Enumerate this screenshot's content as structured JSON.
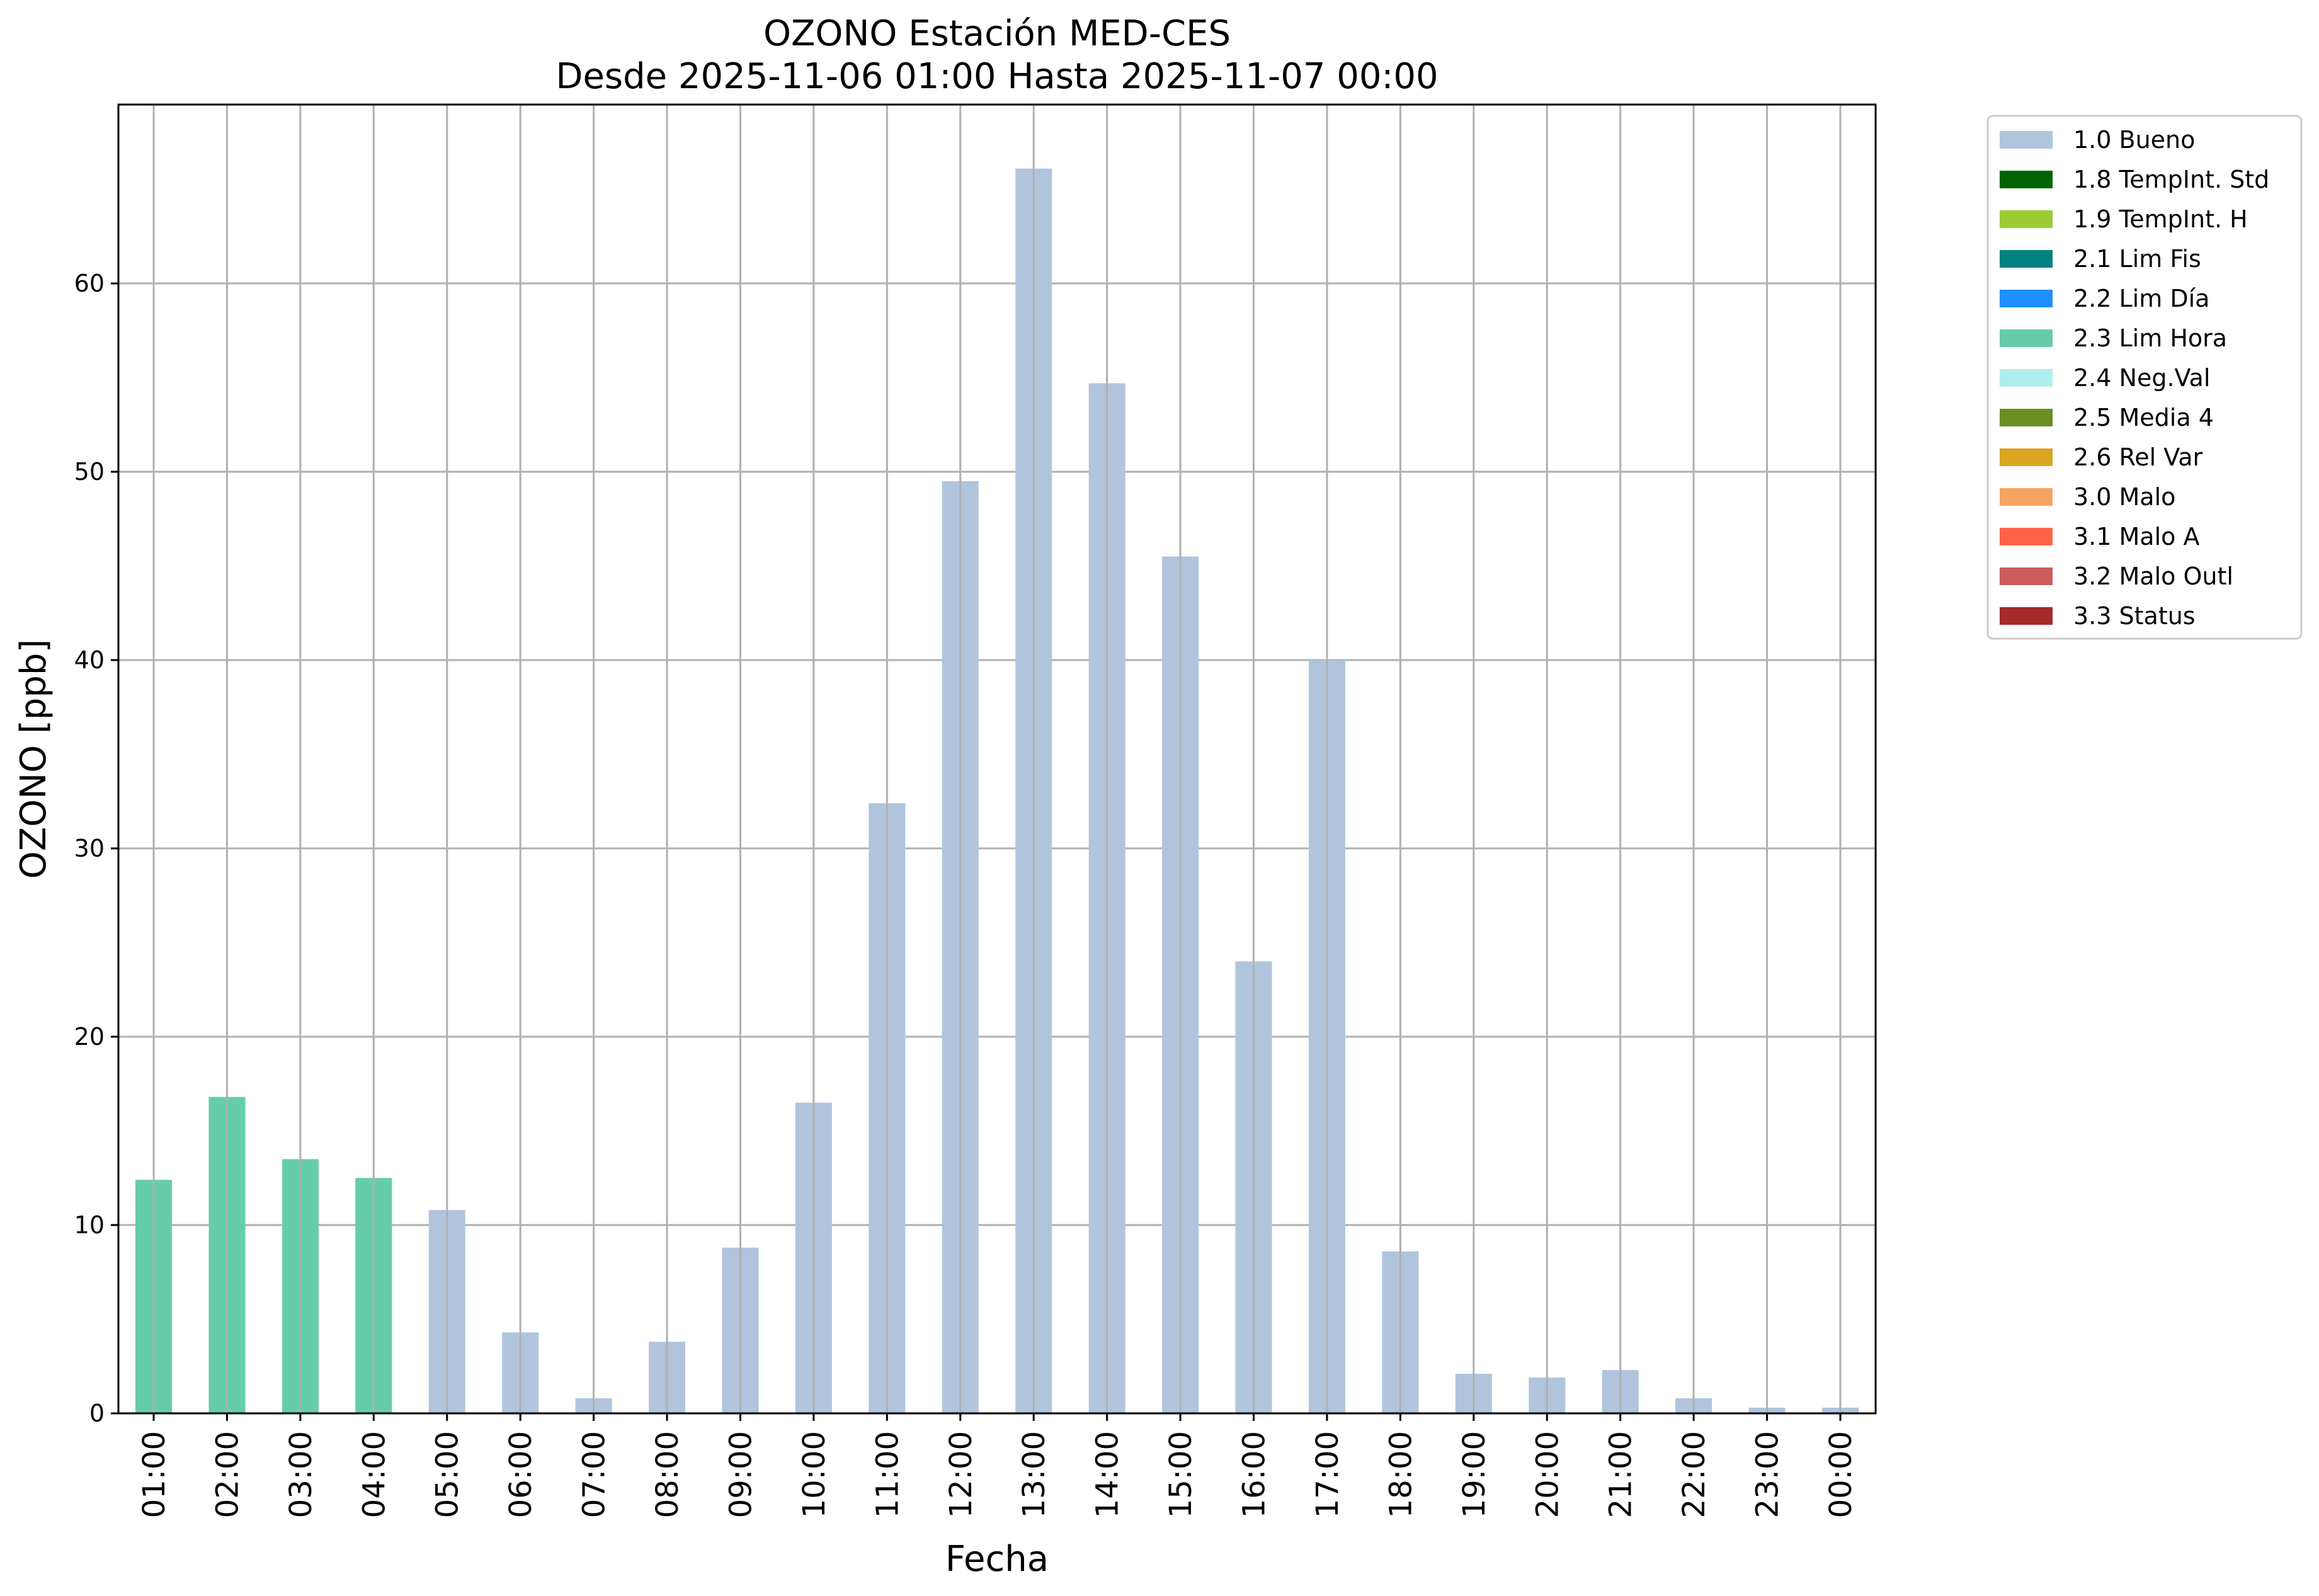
{
  "chart_data": {
    "type": "bar",
    "title": "OZONO Estación MED-CES",
    "subtitle": "Desde 2025-11-06 01:00 Hasta 2025-11-07 00:00",
    "xlabel": "Fecha",
    "ylabel": "OZONO [ppb]",
    "ylim": [
      0,
      69.5
    ],
    "yticks": [
      0,
      10,
      20,
      30,
      40,
      50,
      60
    ],
    "grid": true,
    "legend_position": "outside-top-right",
    "categories": [
      "01:00",
      "02:00",
      "03:00",
      "04:00",
      "05:00",
      "06:00",
      "07:00",
      "08:00",
      "09:00",
      "10:00",
      "11:00",
      "12:00",
      "13:00",
      "14:00",
      "15:00",
      "16:00",
      "17:00",
      "18:00",
      "19:00",
      "20:00",
      "21:00",
      "22:00",
      "23:00",
      "00:00"
    ],
    "values": [
      12.4,
      16.8,
      13.5,
      12.5,
      10.8,
      4.3,
      0.8,
      3.8,
      8.8,
      16.5,
      32.4,
      49.5,
      66.1,
      54.7,
      45.5,
      24.0,
      40.0,
      8.6,
      2.1,
      1.9,
      2.3,
      0.8,
      0.3,
      0.3
    ],
    "flags": [
      "2.3 Lim Hora",
      "2.3 Lim Hora",
      "2.3 Lim Hora",
      "2.3 Lim Hora",
      "1.0 Bueno",
      "1.0 Bueno",
      "1.0 Bueno",
      "1.0 Bueno",
      "1.0 Bueno",
      "1.0 Bueno",
      "1.0 Bueno",
      "1.0 Bueno",
      "1.0 Bueno",
      "1.0 Bueno",
      "1.0 Bueno",
      "1.0 Bueno",
      "1.0 Bueno",
      "1.0 Bueno",
      "1.0 Bueno",
      "1.0 Bueno",
      "1.0 Bueno",
      "1.0 Bueno",
      "1.0 Bueno",
      "1.0 Bueno"
    ],
    "legend": [
      {
        "name": "1.0 Bueno",
        "color": "#b0c4de"
      },
      {
        "name": "1.8 TempInt. Std",
        "color": "#006400"
      },
      {
        "name": "1.9 TempInt. H",
        "color": "#9acd32"
      },
      {
        "name": "2.1 Lim Fis",
        "color": "#008080"
      },
      {
        "name": "2.2 Lim Día",
        "color": "#1e90ff"
      },
      {
        "name": "2.3 Lim Hora",
        "color": "#66cdaa"
      },
      {
        "name": "2.4 Neg.Val",
        "color": "#afeeee"
      },
      {
        "name": "2.5 Media 4",
        "color": "#6b8e23"
      },
      {
        "name": "2.6 Rel Var",
        "color": "#daa520"
      },
      {
        "name": "3.0 Malo",
        "color": "#f4a460"
      },
      {
        "name": "3.1 Malo A",
        "color": "#ff6347"
      },
      {
        "name": "3.2 Malo Outl",
        "color": "#cd5c5c"
      },
      {
        "name": "3.3 Status",
        "color": "#a52a2a"
      }
    ]
  }
}
